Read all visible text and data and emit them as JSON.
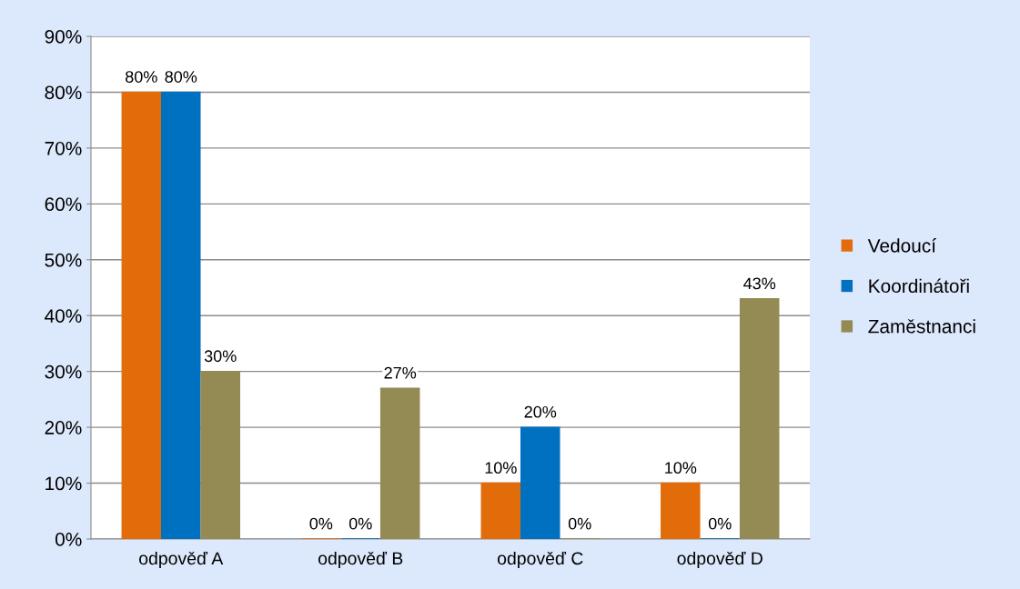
{
  "chart_data": {
    "type": "bar",
    "categories": [
      "odpověď A",
      "odpověď B",
      "odpověď C",
      "odpověď D"
    ],
    "series": [
      {
        "name": "Vedoucí",
        "color": "#e36c0a",
        "values": [
          80,
          0,
          10,
          10
        ],
        "value_labels": [
          "80%",
          "0%",
          "10%",
          "10%"
        ]
      },
      {
        "name": "Koordinátoři",
        "color": "#0070c0",
        "values": [
          80,
          0,
          20,
          0
        ],
        "value_labels": [
          "80%",
          "0%",
          "20%",
          "0%"
        ]
      },
      {
        "name": "Zaměstnanci",
        "color": "#948a54",
        "values": [
          30,
          27,
          0,
          43
        ],
        "value_labels": [
          "30%",
          "27%",
          "0%",
          "43%"
        ]
      }
    ],
    "ylim": [
      0,
      90
    ],
    "yticks": [
      {
        "value": 0,
        "label": "0%"
      },
      {
        "value": 10,
        "label": "10%"
      },
      {
        "value": 20,
        "label": "20%"
      },
      {
        "value": 30,
        "label": "30%"
      },
      {
        "value": 40,
        "label": "40%"
      },
      {
        "value": 50,
        "label": "50%"
      },
      {
        "value": 60,
        "label": "60%"
      },
      {
        "value": 70,
        "label": "70%"
      },
      {
        "value": 80,
        "label": "80%"
      },
      {
        "value": 90,
        "label": "90%"
      }
    ],
    "grid": "y",
    "legend": "right"
  }
}
